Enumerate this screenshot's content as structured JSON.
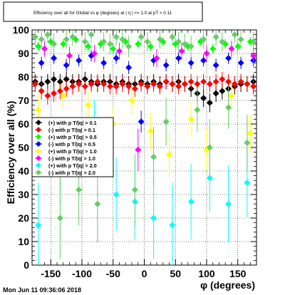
{
  "timestamp": "Mon Jun 11 09:36:06 2018",
  "chart_data": {
    "type": "scatter",
    "title": "Efficiency over all for Global vs φ (degrees) at | η | <= 1.0 at pT > 0.11",
    "xlabel": "φ (degrees)",
    "ylabel": "Efficiency over all (%)",
    "xlim": [
      -180,
      180
    ],
    "ylim": [
      0,
      100
    ],
    "x_ticks": [
      -150,
      -100,
      -50,
      0,
      50,
      100,
      150
    ],
    "y_ticks": [
      0,
      10,
      20,
      30,
      40,
      50,
      60,
      70,
      80,
      90,
      100
    ],
    "grid": true,
    "legend_position": "left-middle",
    "series": [
      {
        "name": "(+) with p T/|q| > 0.1",
        "color": "#000000",
        "x": [
          -175,
          -165,
          -155,
          -145,
          -135,
          -125,
          -115,
          -105,
          -95,
          -85,
          -75,
          -65,
          -55,
          -45,
          -35,
          -25,
          -15,
          -5,
          5,
          15,
          25,
          35,
          45,
          55,
          65,
          75,
          85,
          95,
          105,
          115,
          125,
          135,
          145,
          155,
          165,
          175
        ],
        "y": [
          78,
          77,
          78,
          79,
          78,
          79,
          78,
          78,
          79,
          78,
          77,
          78,
          78,
          77,
          78,
          77,
          77,
          78,
          77,
          78,
          77,
          78,
          77,
          78,
          77,
          75,
          73,
          71,
          69,
          73,
          74,
          75,
          76,
          77,
          77,
          78
        ]
      },
      {
        "name": "(-) with p T/|q| > 0.1",
        "color": "#ff0000",
        "x": [
          -175,
          -165,
          -155,
          -145,
          -135,
          -125,
          -115,
          -105,
          -95,
          -85,
          -75,
          -65,
          -55,
          -45,
          -35,
          -25,
          -15,
          -5,
          5,
          15,
          25,
          35,
          45,
          55,
          65,
          75,
          85,
          95,
          105,
          115,
          125,
          135,
          145,
          155,
          165,
          175
        ],
        "y": [
          77,
          74,
          72,
          73,
          74,
          75,
          76,
          77,
          76,
          77,
          78,
          77,
          76,
          76,
          77,
          76,
          75,
          77,
          76,
          77,
          76,
          78,
          77,
          76,
          77,
          78,
          77,
          78,
          77,
          78,
          79,
          78,
          77,
          78,
          77,
          76
        ]
      },
      {
        "name": "(+) with p T/|q| > 0.5",
        "color": "#00ff00",
        "x": [
          -170,
          -150,
          -130,
          -110,
          -90,
          -70,
          -50,
          -30,
          -10,
          10,
          30,
          50,
          70,
          90,
          110,
          130,
          150,
          170
        ],
        "y": [
          93,
          95,
          94,
          96,
          93,
          94,
          92,
          95,
          94,
          93,
          95,
          94,
          93,
          95,
          92,
          94,
          93,
          95
        ]
      },
      {
        "name": "(-) with p T/|q| > 0.5",
        "color": "#0000ff",
        "x": [
          -165,
          -145,
          -125,
          -105,
          -85,
          -65,
          -45,
          -25,
          -5,
          15,
          35,
          55,
          75,
          95,
          115,
          135,
          155,
          175
        ],
        "y": [
          86,
          88,
          85,
          87,
          89,
          86,
          88,
          84,
          61,
          87,
          85,
          88,
          86,
          87,
          85,
          88,
          86,
          87
        ]
      },
      {
        "name": "(+) with p T/|q| > 1.0",
        "color": "#ffff00",
        "x": [
          -170,
          -130,
          -90,
          -50,
          -20,
          10,
          40,
          75,
          100,
          140,
          170
        ],
        "y": [
          66,
          72,
          68,
          60,
          70,
          57,
          47,
          62,
          49,
          72,
          56
        ]
      },
      {
        "name": "(-) with p T/|q| > 1.0",
        "color": "#ff00ff",
        "x": [
          -160,
          -120,
          -80,
          -40,
          -10,
          20,
          60,
          100,
          140,
          175
        ],
        "y": [
          92,
          89,
          90,
          91,
          49,
          88,
          91,
          90,
          92,
          89
        ]
      },
      {
        "name": "(+) with p T/|q| > 2.0",
        "color": "#00ffff",
        "x": [
          -170,
          -135,
          -105,
          -80,
          -45,
          -15,
          15,
          45,
          75,
          105,
          135,
          165
        ],
        "y": [
          17,
          40,
          50,
          60,
          30,
          27,
          20,
          17,
          27,
          37,
          26,
          35
        ]
      },
      {
        "name": "(-) with p T/|q| > 2.0",
        "color": "#66cc66",
        "x": [
          -175,
          -165,
          -155,
          -145,
          -135,
          -125,
          -115,
          -105,
          -95,
          -85,
          -75,
          -65,
          -55,
          -45,
          -35,
          -25,
          -15,
          -5,
          5,
          15,
          25,
          35,
          45,
          55,
          65,
          75,
          85,
          95,
          105,
          115,
          125,
          135,
          145,
          155,
          165,
          175
        ],
        "y": [
          97,
          96,
          98,
          94,
          20,
          96,
          97,
          32,
          95,
          98,
          26,
          95,
          94,
          97,
          96,
          93,
          32,
          97,
          95,
          46,
          96,
          61,
          97,
          95,
          94,
          93,
          66,
          96,
          50,
          97,
          95,
          67,
          98,
          96,
          52,
          95
        ]
      }
    ]
  }
}
